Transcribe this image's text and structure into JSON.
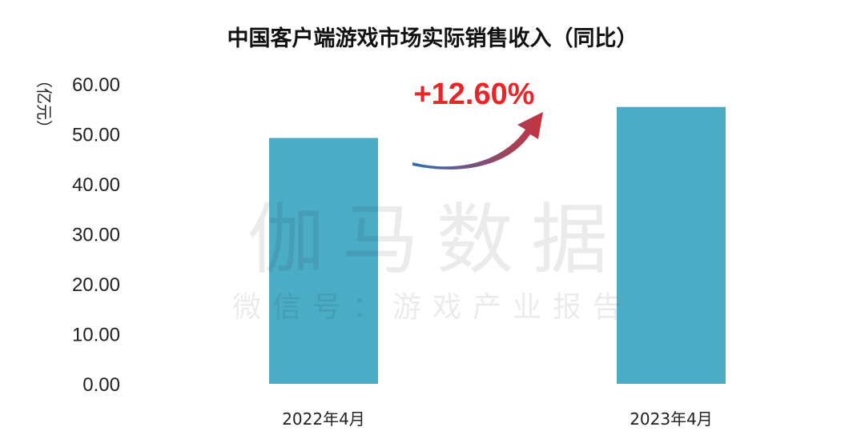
{
  "chart_data": {
    "type": "bar",
    "title": "中国客户端游戏市场实际销售收入（同比）",
    "ylabel": "（亿元）",
    "xlabel": "",
    "categories": [
      "2022年4月",
      "2023年4月"
    ],
    "values": [
      49.2,
      55.4
    ],
    "ylim": [
      0,
      60
    ],
    "yticks": [
      "0.00",
      "10.00",
      "20.00",
      "30.00",
      "40.00",
      "50.00",
      "60.00"
    ],
    "bar_color": "#4BACC6",
    "grid": false,
    "legend": "none"
  },
  "annotation": {
    "growth_label": "+12.60%",
    "growth_color": "#E8262A",
    "arrow_gradient": [
      "#2E6FB8",
      "#C8323C"
    ]
  },
  "watermark": {
    "main": "伽马数据",
    "sub": "微信号：游戏产业报告"
  }
}
